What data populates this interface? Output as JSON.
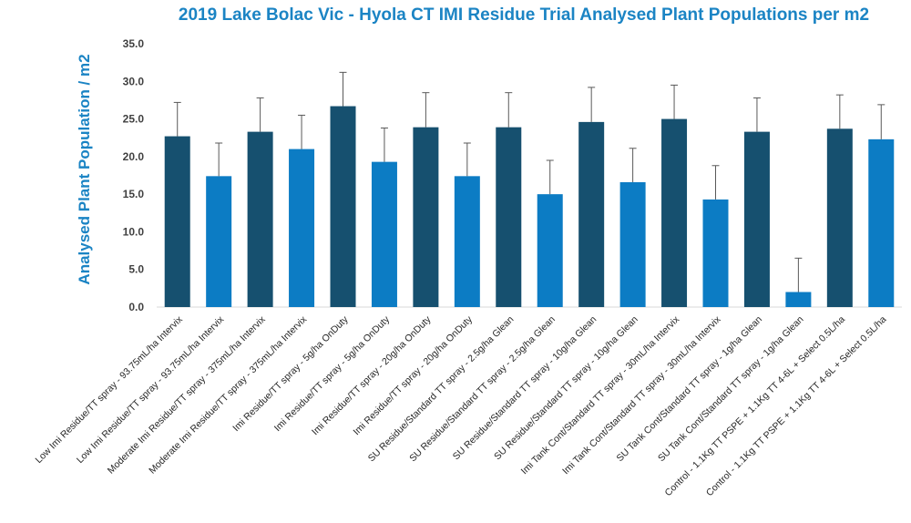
{
  "chart_data": {
    "type": "bar",
    "title": "2019 Lake Bolac Vic - Hyola CT IMI Residue Trial Analysed Plant Populations per m2",
    "xlabel": "",
    "ylabel": "Analysed Plant Population / m2",
    "ylim": [
      0,
      35
    ],
    "yticks": [
      "0.0",
      "5.0",
      "10.0",
      "15.0",
      "20.0",
      "25.0",
      "30.0",
      "35.0"
    ],
    "grid": false,
    "legend": "none",
    "colors": {
      "dark": "#16506f",
      "light": "#0c7cc4",
      "axis": "#d9d9d9",
      "error": "#595959",
      "title": "#1b84c4"
    },
    "categories": [
      "Low Imi Residue/TT spray - 93.75mL/ha Intervix",
      "Low Imi Residue/TT spray - 93.75mL/ha Intervix",
      "Moderate Imi Residue/TT spray - 375mL/ha Intervix",
      "Moderate Imi Residue/TT spray - 375mL/ha Intervix",
      "Imi Residue/TT spray - 5g/ha OnDuty",
      "Imi Residue/TT spray - 5g/ha OnDuty",
      "Imi Residue/TT spray - 20g/ha OnDuty",
      "Imi Residue/TT spray - 20g/ha OnDuty",
      "SU Residue/Standard TT spray - 2.5g/ha Glean",
      "SU Residue/Standard TT spray - 2.5g/ha Glean",
      "SU Residue/Standard TT spray - 10g/ha Glean",
      "SU Residue/Standard TT spray - 10g/ha Glean",
      "Imi Tank Cont/Standard TT spray - 30mL/ha Intervix",
      "Imi Tank Cont/Standard TT spray - 30mL/ha Intervix",
      "SU Tank Cont/Standard TT spray - 1g/ha Glean",
      "SU Tank Cont/Standard TT spray - 1g/ha Glean",
      "Control - 1.1Kg TT PSPE + 1.1Kg TT 4-6L + Select 0.5L/ha",
      "Control - 1.1Kg TT PSPE + 1.1Kg TT 4-6L + Select 0.5L/ha"
    ],
    "values": [
      22.7,
      17.4,
      23.3,
      21.0,
      26.7,
      19.3,
      23.9,
      17.4,
      23.9,
      15.0,
      24.6,
      16.6,
      25.0,
      14.3,
      23.3,
      2.0,
      23.7,
      22.3
    ],
    "error_upper": [
      27.2,
      21.8,
      27.8,
      25.5,
      31.2,
      23.8,
      28.5,
      21.8,
      28.5,
      19.5,
      29.2,
      21.1,
      29.5,
      18.8,
      27.8,
      6.5,
      28.2,
      26.9
    ],
    "bar_color_keys": [
      "dark",
      "light",
      "dark",
      "light",
      "dark",
      "light",
      "dark",
      "light",
      "dark",
      "light",
      "dark",
      "light",
      "dark",
      "light",
      "dark",
      "light",
      "dark",
      "light"
    ]
  }
}
